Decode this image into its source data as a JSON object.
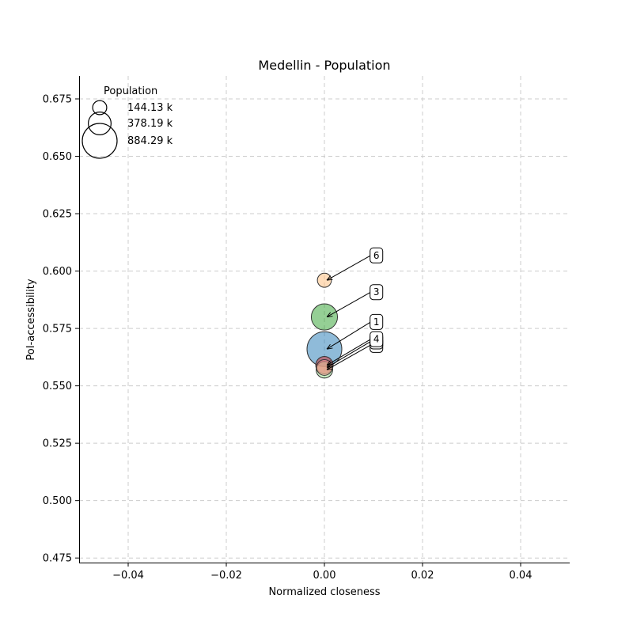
{
  "chart_data": {
    "type": "scatter",
    "title": "Medellin - Population",
    "xlabel": "Normalized closeness",
    "ylabel": "PoI-accessibility",
    "xlim": [
      -0.05,
      0.05
    ],
    "ylim": [
      0.473,
      0.685
    ],
    "xticks": [
      -0.04,
      -0.02,
      0.0,
      0.02,
      0.04
    ],
    "xtick_labels": [
      "−0.04",
      "−0.02",
      "0.00",
      "0.02",
      "0.04"
    ],
    "yticks": [
      0.475,
      0.5,
      0.525,
      0.55,
      0.575,
      0.6,
      0.625,
      0.65,
      0.675
    ],
    "ytick_labels": [
      "0.475",
      "0.500",
      "0.525",
      "0.550",
      "0.575",
      "0.600",
      "0.625",
      "0.650",
      "0.675"
    ],
    "grid": true,
    "legend": {
      "title": "Population",
      "placement": "top-left",
      "entries": [
        {
          "label": "144.13 k",
          "population": 144130
        },
        {
          "label": "378.19 k",
          "population": 378190
        },
        {
          "label": "884.29 k",
          "population": 884290
        }
      ]
    },
    "points": [
      {
        "id": "1",
        "x": 0.0,
        "y": 0.566,
        "population": 884290,
        "color": "#1f77b4"
      },
      {
        "id": "3",
        "x": 0.0,
        "y": 0.58,
        "population": 500000,
        "color": "#2ca02c"
      },
      {
        "id": "6",
        "x": 0.0,
        "y": 0.596,
        "population": 144130,
        "color": "#ffbb78"
      },
      {
        "id": "2",
        "x": 0.0,
        "y": 0.557,
        "population": 200000,
        "color": "#98df8a"
      },
      {
        "id": "4",
        "x": 0.0,
        "y": 0.559,
        "population": 220000,
        "color": "#d62728"
      },
      {
        "id": "5",
        "x": 0.0,
        "y": 0.558,
        "population": 180000,
        "color": "#ff9896"
      }
    ],
    "annotations": [
      {
        "label": "6",
        "x": 0.0,
        "y": 0.596,
        "text_x": 0.0106,
        "text_y": 0.607
      },
      {
        "label": "3",
        "x": 0.0,
        "y": 0.58,
        "text_x": 0.0106,
        "text_y": 0.591
      },
      {
        "label": "1",
        "x": 0.0,
        "y": 0.566,
        "text_x": 0.0106,
        "text_y": 0.578
      },
      {
        "label": "",
        "x": 0.0,
        "y": 0.557,
        "text_x": 0.0106,
        "text_y": 0.568
      },
      {
        "label": "",
        "x": 0.0,
        "y": 0.558,
        "text_x": 0.0106,
        "text_y": 0.5695
      },
      {
        "label": "4",
        "x": 0.0,
        "y": 0.559,
        "text_x": 0.0106,
        "text_y": 0.5705
      }
    ]
  }
}
